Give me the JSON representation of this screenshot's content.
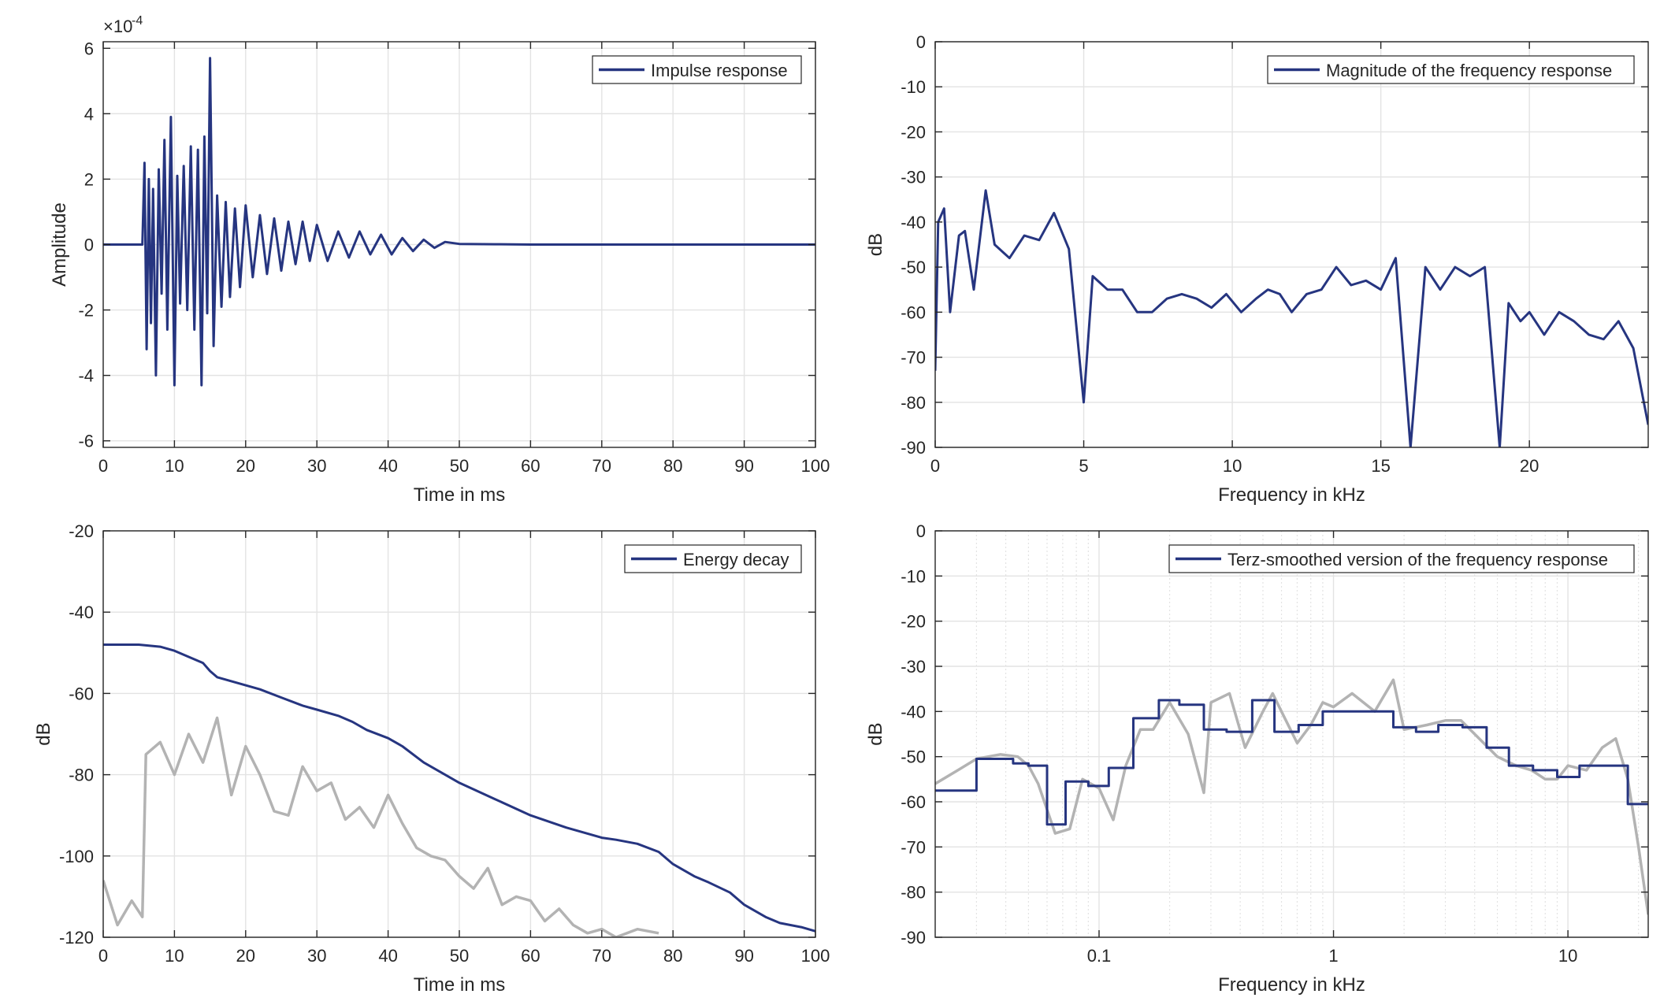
{
  "colors": {
    "series": "#263580",
    "gray": "#b3b3b3",
    "grid": "#e3e3e3",
    "axis": "#262626"
  },
  "chart_data": [
    {
      "id": "impulse",
      "type": "line",
      "xlabel": "Time in ms",
      "ylabel": "Amplitude",
      "xlim": [
        0,
        100
      ],
      "ylim": [
        -6.2,
        6.2
      ],
      "exponent_label": "×10",
      "exponent_power": "-4",
      "xticks": [
        0,
        10,
        20,
        30,
        40,
        50,
        60,
        70,
        80,
        90,
        100
      ],
      "xtick_labels": [
        "0",
        "10",
        "20",
        "30",
        "40",
        "50",
        "60",
        "70",
        "80",
        "90",
        "100"
      ],
      "yticks": [
        6,
        4,
        2,
        0,
        -2,
        -4,
        -6
      ],
      "ytick_labels": [
        "6",
        "4",
        "2",
        "0",
        "-2",
        "-4",
        "-6"
      ],
      "legend": "Impulse response",
      "legend_position": "top-right",
      "series": [
        {
          "name": "Impulse response",
          "x": [
            0,
            5.5,
            5.8,
            6.1,
            6.4,
            6.7,
            7.0,
            7.4,
            7.8,
            8.2,
            8.6,
            9.0,
            9.5,
            10.0,
            10.4,
            10.8,
            11.3,
            11.8,
            12.3,
            12.8,
            13.3,
            13.8,
            14.2,
            14.6,
            15.0,
            15.5,
            16.0,
            16.6,
            17.2,
            17.8,
            18.5,
            19.2,
            20.0,
            21.0,
            22.0,
            23.0,
            24.0,
            25.0,
            26.0,
            27.0,
            28.0,
            29.0,
            30.0,
            31.5,
            33.0,
            34.5,
            36.0,
            37.5,
            39.0,
            40.5,
            42.0,
            43.5,
            45.0,
            46.5,
            48.0,
            50.0,
            55.0,
            60.0,
            70.0,
            80.0,
            90.0,
            100.0
          ],
          "y": [
            0,
            0,
            2.5,
            -3.2,
            2.0,
            -2.4,
            1.7,
            -4.0,
            2.3,
            -1.5,
            3.2,
            -2.6,
            3.9,
            -4.3,
            2.1,
            -1.8,
            2.4,
            -2.0,
            3.0,
            -2.6,
            2.9,
            -4.3,
            3.3,
            -2.1,
            5.7,
            -3.1,
            1.5,
            -1.9,
            1.3,
            -1.6,
            1.1,
            -1.3,
            1.2,
            -1.0,
            0.9,
            -0.9,
            0.8,
            -0.8,
            0.7,
            -0.6,
            0.7,
            -0.5,
            0.6,
            -0.5,
            0.4,
            -0.4,
            0.4,
            -0.3,
            0.3,
            -0.3,
            0.2,
            -0.2,
            0.15,
            -0.1,
            0.08,
            0.02,
            0.01,
            0.0,
            0.0,
            0.0,
            0.0,
            0.0
          ]
        }
      ]
    },
    {
      "id": "magnitude",
      "type": "line",
      "xlabel": "Frequency in kHz",
      "ylabel": "dB",
      "xlim": [
        0,
        24
      ],
      "ylim": [
        -90,
        0
      ],
      "xticks": [
        0,
        5,
        10,
        15,
        20
      ],
      "xtick_labels": [
        "0",
        "5",
        "10",
        "15",
        "20"
      ],
      "yticks": [
        0,
        -10,
        -20,
        -30,
        -40,
        -50,
        -60,
        -70,
        -80,
        -90
      ],
      "ytick_labels": [
        "0",
        "-10",
        "-20",
        "-30",
        "-40",
        "-50",
        "-60",
        "-70",
        "-80",
        "-90"
      ],
      "legend": "Magnitude of the frequency response",
      "legend_position": "top-right",
      "series": [
        {
          "name": "Magnitude of the frequency response",
          "x": [
            0,
            0.1,
            0.3,
            0.5,
            0.8,
            1.0,
            1.3,
            1.7,
            2.0,
            2.5,
            3.0,
            3.5,
            4.0,
            4.5,
            5.0,
            5.3,
            5.8,
            6.3,
            6.8,
            7.3,
            7.8,
            8.3,
            8.8,
            9.3,
            9.8,
            10.3,
            10.8,
            11.2,
            11.6,
            12.0,
            12.5,
            13.0,
            13.5,
            14.0,
            14.5,
            15.0,
            15.5,
            16.0,
            16.5,
            17.0,
            17.5,
            18.0,
            18.5,
            19.0,
            19.3,
            19.7,
            20.0,
            20.5,
            21.0,
            21.5,
            22.0,
            22.5,
            23.0,
            23.5,
            24.0
          ],
          "y": [
            -73,
            -40,
            -37,
            -60,
            -43,
            -42,
            -55,
            -33,
            -45,
            -48,
            -43,
            -44,
            -38,
            -46,
            -80,
            -52,
            -55,
            -55,
            -60,
            -60,
            -57,
            -56,
            -57,
            -59,
            -56,
            -60,
            -57,
            -55,
            -56,
            -60,
            -56,
            -55,
            -50,
            -54,
            -53,
            -55,
            -48,
            -90,
            -50,
            -55,
            -50,
            -52,
            -50,
            -90,
            -58,
            -62,
            -60,
            -65,
            -60,
            -62,
            -65,
            -66,
            -62,
            -68,
            -85
          ]
        }
      ]
    },
    {
      "id": "decay",
      "type": "line",
      "xlabel": "Time in ms",
      "ylabel": "dB",
      "xlim": [
        0,
        100
      ],
      "ylim": [
        -120,
        -20
      ],
      "xticks": [
        0,
        10,
        20,
        30,
        40,
        50,
        60,
        70,
        80,
        90,
        100
      ],
      "xtick_labels": [
        "0",
        "10",
        "20",
        "30",
        "40",
        "50",
        "60",
        "70",
        "80",
        "90",
        "100"
      ],
      "yticks": [
        -20,
        -40,
        -60,
        -80,
        -100,
        -120
      ],
      "ytick_labels": [
        "-20",
        "-40",
        "-60",
        "-80",
        "-100",
        "-120"
      ],
      "legend": "Energy decay",
      "legend_position": "top-right",
      "series": [
        {
          "name": "Energy decay",
          "x": [
            0,
            5,
            8,
            10,
            12,
            14,
            15,
            16,
            18,
            20,
            22,
            25,
            28,
            30,
            33,
            35,
            37,
            40,
            42,
            45,
            48,
            50,
            55,
            60,
            65,
            70,
            72,
            75,
            78,
            80,
            83,
            85,
            88,
            90,
            93,
            95,
            98,
            100
          ],
          "y": [
            -48,
            -48,
            -48.5,
            -49.5,
            -51,
            -52.5,
            -54.5,
            -56,
            -57,
            -58,
            -59,
            -61,
            -63,
            -64,
            -65.5,
            -67,
            -69,
            -71,
            -73,
            -77,
            -80,
            -82,
            -86,
            -90,
            -93,
            -95.5,
            -96,
            -97,
            -99,
            -102,
            -105,
            -106.5,
            -109,
            -112,
            -115,
            -116.5,
            -117.5,
            -118.5
          ]
        },
        {
          "x": [
            0,
            2,
            4,
            5.5,
            6,
            8,
            10,
            12,
            14,
            16,
            18,
            20,
            22,
            24,
            26,
            28,
            30,
            32,
            34,
            36,
            38,
            40,
            42,
            44,
            46,
            48,
            50,
            52,
            54,
            56,
            58,
            60,
            62,
            64,
            66,
            68,
            70,
            72,
            75,
            78
          ],
          "y": [
            -106,
            -117,
            -111,
            -115,
            -75,
            -72,
            -80,
            -70,
            -77,
            -66,
            -85,
            -73,
            -80,
            -89,
            -90,
            -78,
            -84,
            -82,
            -91,
            -88,
            -93,
            -85,
            -92,
            -98,
            -100,
            -101,
            -105,
            -108,
            -103,
            -112,
            -110,
            -111,
            -116,
            -113,
            -117,
            -119,
            -118,
            -120,
            -118,
            -119
          ]
        }
      ]
    },
    {
      "id": "terz",
      "type": "line",
      "xlabel": "Frequency in kHz",
      "ylabel": "dB",
      "xscale": "log",
      "xlim": [
        0.02,
        22
      ],
      "ylim": [
        -90,
        0
      ],
      "xticks": [
        0.1,
        1,
        10
      ],
      "xtick_labels": [
        "0.1",
        "1",
        "10"
      ],
      "yticks": [
        0,
        -10,
        -20,
        -30,
        -40,
        -50,
        -60,
        -70,
        -80,
        -90
      ],
      "ytick_labels": [
        "0",
        "-10",
        "-20",
        "-30",
        "-40",
        "-50",
        "-60",
        "-70",
        "-80",
        "-90"
      ],
      "legend": "Terz-smoothed version of the frequency response",
      "legend_position": "top-right",
      "series": [
        {
          "name": "Terz-smoothed version of the frequency response",
          "x": [
            0.02,
            0.03,
            0.03,
            0.043,
            0.043,
            0.05,
            0.05,
            0.06,
            0.06,
            0.072,
            0.072,
            0.09,
            0.09,
            0.11,
            0.11,
            0.14,
            0.14,
            0.18,
            0.18,
            0.22,
            0.22,
            0.28,
            0.28,
            0.35,
            0.35,
            0.45,
            0.45,
            0.56,
            0.56,
            0.71,
            0.71,
            0.9,
            0.9,
            1.12,
            1.12,
            1.8,
            1.8,
            2.25,
            2.25,
            2.8,
            2.8,
            3.55,
            3.55,
            4.5,
            4.5,
            5.6,
            5.6,
            7.1,
            7.1,
            9.0,
            9.0,
            11.2,
            11.2,
            14.0,
            14.0,
            18.0,
            18.0,
            22.0
          ],
          "y": [
            -57.5,
            -57.5,
            -50.5,
            -50.5,
            -51.5,
            -51.5,
            -52,
            -52,
            -65,
            -65,
            -55.5,
            -55.5,
            -56.5,
            -56.5,
            -52.5,
            -52.5,
            -41.5,
            -41.5,
            -37.5,
            -37.5,
            -38.5,
            -38.5,
            -44,
            -44,
            -44.5,
            -44.5,
            -37.5,
            -37.5,
            -44.5,
            -44.5,
            -43,
            -43,
            -40,
            -40,
            -40,
            -40,
            -43.5,
            -43.5,
            -44.5,
            -44.5,
            -43,
            -43,
            -43.5,
            -43.5,
            -48,
            -48,
            -52,
            -52,
            -53,
            -53,
            -54.5,
            -54.5,
            -52,
            -52,
            -52,
            -52,
            -60.5,
            -60.5
          ]
        },
        {
          "x": [
            0.02,
            0.025,
            0.03,
            0.038,
            0.045,
            0.05,
            0.055,
            0.065,
            0.075,
            0.085,
            0.1,
            0.115,
            0.13,
            0.15,
            0.17,
            0.2,
            0.24,
            0.28,
            0.3,
            0.36,
            0.42,
            0.5,
            0.55,
            0.6,
            0.7,
            0.8,
            0.9,
            1.0,
            1.2,
            1.5,
            1.8,
            2.0,
            2.5,
            3.0,
            3.5,
            4.0,
            5.0,
            6.0,
            7.0,
            8.0,
            9.0,
            10.0,
            12.0,
            14.0,
            16.0,
            18.0,
            20.0,
            22.0
          ],
          "y": [
            -56,
            -53,
            -50.5,
            -49.5,
            -50,
            -52,
            -56,
            -67,
            -66,
            -55,
            -57,
            -64,
            -52,
            -44,
            -44,
            -38,
            -45,
            -58,
            -38,
            -36,
            -48,
            -40,
            -36,
            -40,
            -47,
            -43,
            -38,
            -39,
            -36,
            -40,
            -33,
            -44,
            -43,
            -42,
            -42,
            -45,
            -50,
            -52,
            -53,
            -55,
            -55,
            -52,
            -53,
            -48,
            -46,
            -55,
            -70,
            -85
          ]
        }
      ]
    }
  ]
}
